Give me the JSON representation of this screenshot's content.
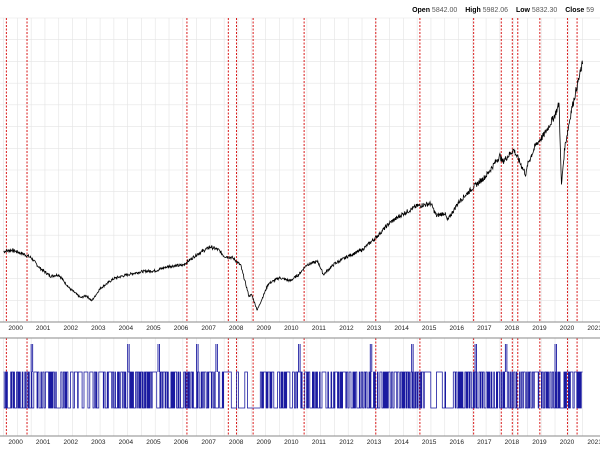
{
  "header": {
    "open_label": "Open",
    "open_value": "5842.00",
    "high_label": "High",
    "high_value": "5982.06",
    "low_label": "Low",
    "low_value": "5832.30",
    "close_label": "Close",
    "close_value": "59"
  },
  "colors": {
    "price_line": "#000000",
    "signal_line": "#1a1aa0",
    "event_line": "#d40000",
    "grid": "#e4e4e4",
    "axis": "#8a8a8a"
  },
  "chart_data": [
    {
      "type": "line",
      "title": "",
      "xlabel": "",
      "ylabel": "",
      "x_ticks": [
        "2000",
        "2001",
        "2002",
        "2003",
        "2004",
        "2005",
        "2006",
        "2007",
        "2008",
        "2009",
        "2010",
        "2011",
        "2012",
        "2013",
        "2014",
        "2015",
        "2016",
        "2017",
        "2018",
        "2019",
        "2020",
        "2021"
      ],
      "x_range": [
        2000.0,
        2021.0
      ],
      "series": [
        {
          "x": [
            2000.0,
            2000.3,
            2000.7,
            2001.0,
            2001.3,
            2001.7,
            2002.0,
            2002.4,
            2002.8,
            2003.0,
            2003.2,
            2003.5,
            2004.0,
            2004.5,
            2005.0,
            2005.5,
            2006.0,
            2006.5,
            2007.0,
            2007.5,
            2007.8,
            2008.0,
            2008.3,
            2008.6,
            2008.9,
            2009.0,
            2009.2,
            2009.6,
            2010.0,
            2010.4,
            2010.7,
            2011.0,
            2011.4,
            2011.6,
            2011.8,
            2012.0,
            2012.5,
            2013.0,
            2013.5,
            2014.0,
            2014.5,
            2015.0,
            2015.5,
            2015.7,
            2016.0,
            2016.1,
            2016.5,
            2017.0,
            2017.5,
            2018.0,
            2018.1,
            2018.5,
            2018.95,
            2019.0,
            2019.3,
            2019.6,
            2020.0,
            2020.15,
            2020.23,
            2020.35,
            2020.6,
            2021.0
          ],
          "y": [
            1460,
            1480,
            1430,
            1380,
            1250,
            1140,
            1160,
            980,
            860,
            890,
            820,
            980,
            1110,
            1160,
            1200,
            1210,
            1270,
            1280,
            1420,
            1520,
            1480,
            1400,
            1380,
            1280,
            880,
            900,
            700,
            1040,
            1120,
            1080,
            1160,
            1290,
            1330,
            1160,
            1230,
            1300,
            1400,
            1480,
            1640,
            1830,
            1950,
            2050,
            2080,
            1920,
            1960,
            1860,
            2100,
            2280,
            2440,
            2700,
            2620,
            2780,
            2450,
            2580,
            2840,
            2970,
            3230,
            3380,
            2300,
            2800,
            3300,
            3900
          ]
        }
      ]
    },
    {
      "type": "line",
      "title": "",
      "xlabel": "",
      "ylabel": "",
      "y_levels": [
        -1,
        0,
        1
      ],
      "note": "binary-state signal oscillating between levels",
      "dense_periods": [
        [
          2000.0,
          2002.6
        ],
        [
          2003.2,
          2008.0
        ],
        [
          2009.3,
          2015.3
        ],
        [
          2016.2,
          2021.0
        ]
      ],
      "spikes": [
        2001.0,
        2004.5,
        2005.6,
        2007.0,
        2007.7,
        2010.7,
        2013.3,
        2014.8,
        2017.1,
        2018.2,
        2020.0
      ]
    }
  ],
  "event_lines": [
    2000.1,
    2000.85,
    2006.65,
    2008.15,
    2008.45,
    2009.05,
    2010.9,
    2013.5,
    2015.1,
    2017.05,
    2018.05,
    2018.45,
    2018.65,
    2019.45,
    2020.45,
    2020.8
  ]
}
